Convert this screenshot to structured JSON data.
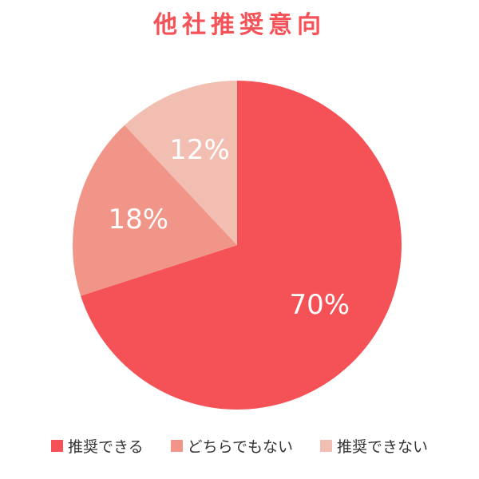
{
  "chart_data": {
    "type": "pie",
    "title": "他社推奨意向",
    "slices": [
      {
        "label": "推奨できる",
        "value": 70,
        "display": "70%",
        "color": "#f55258"
      },
      {
        "label": "どちらでもない",
        "value": 18,
        "display": "18%",
        "color": "#f09587"
      },
      {
        "label": "推奨できない",
        "value": 12,
        "display": "12%",
        "color": "#f2beb2"
      }
    ],
    "start": "12 o'clock",
    "direction": "clockwise",
    "legend_position": "bottom"
  }
}
